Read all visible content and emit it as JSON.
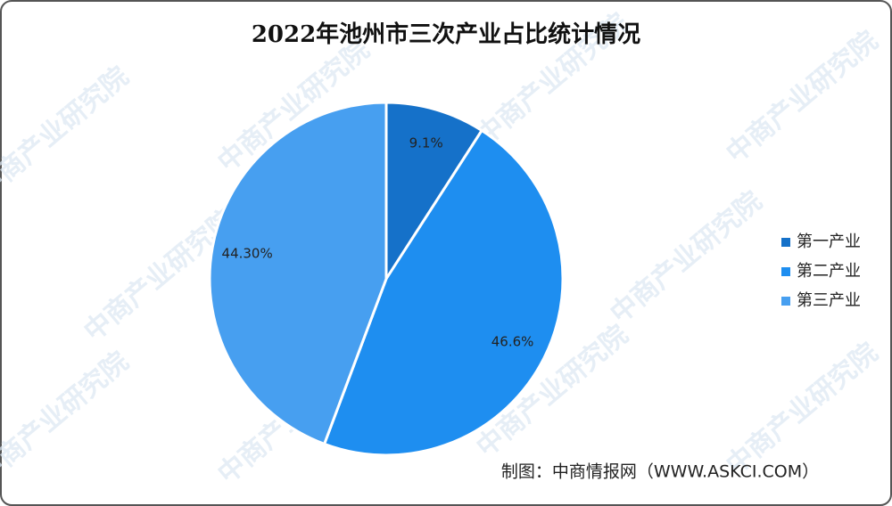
{
  "chart_data": {
    "type": "pie",
    "title": "2022年池州市三次产业占比统计情况",
    "categories": [
      "第一产业",
      "第二产业",
      "第三产业"
    ],
    "values": [
      9.1,
      46.6,
      44.3
    ],
    "value_labels": [
      "9.1%",
      "46.6%",
      "44.30%"
    ],
    "colors": [
      "#1571c9",
      "#1e8ef0",
      "#479ff0"
    ],
    "legend": "right",
    "source": "制图：中商情报网（WWW.ASKCI.COM）",
    "watermark": "中商产业研究院"
  }
}
